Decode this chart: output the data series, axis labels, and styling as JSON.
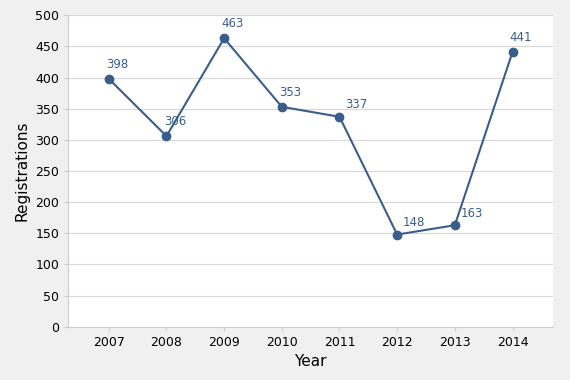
{
  "years": [
    2007,
    2008,
    2009,
    2010,
    2011,
    2012,
    2013,
    2014
  ],
  "values": [
    398,
    306,
    463,
    353,
    337,
    148,
    163,
    441
  ],
  "line_color": "#3A5E8C",
  "marker_color": "#3A5E8C",
  "xlabel": "Year",
  "ylabel": "Registrations",
  "ylim": [
    0,
    500
  ],
  "yticks": [
    0,
    50,
    100,
    150,
    200,
    250,
    300,
    350,
    400,
    450,
    500
  ],
  "background_color": "#F0F0F0",
  "plot_bg_color": "#FFFFFF",
  "grid_color": "#D8D8D8",
  "label_fontsize": 11,
  "annotation_fontsize": 8.5,
  "tick_fontsize": 9,
  "xlim_left": 2006.3,
  "xlim_right": 2014.7
}
